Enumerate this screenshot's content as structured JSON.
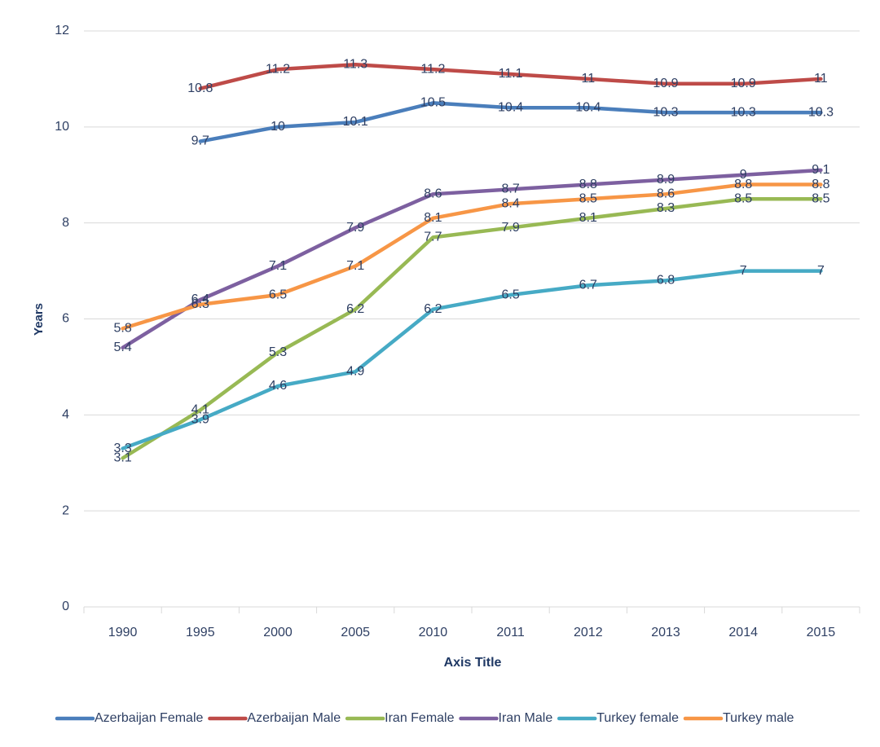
{
  "chart_data": {
    "type": "line",
    "categories": [
      "1990",
      "1995",
      "2000",
      "2005",
      "2010",
      "2011",
      "2012",
      "2013",
      "2014",
      "2015"
    ],
    "series": [
      {
        "name": "Azerbaijan Female",
        "color": "#4a7ebb",
        "values": [
          null,
          9.7,
          10,
          10.1,
          10.5,
          10.4,
          10.4,
          10.3,
          10.3,
          10.3
        ]
      },
      {
        "name": "Azerbaijan Male",
        "color": "#be4b48",
        "values": [
          null,
          10.8,
          11.2,
          11.3,
          11.2,
          11.1,
          11,
          10.9,
          10.9,
          11
        ]
      },
      {
        "name": "Iran Female",
        "color": "#98b954",
        "values": [
          3.1,
          4.1,
          5.3,
          6.2,
          7.7,
          7.9,
          8.1,
          8.3,
          8.5,
          8.5
        ]
      },
      {
        "name": "Iran Male",
        "color": "#7d60a0",
        "values": [
          5.4,
          6.4,
          7.1,
          7.9,
          8.6,
          8.7,
          8.8,
          8.9,
          9,
          9.1
        ]
      },
      {
        "name": "Turkey female",
        "color": "#46aac5",
        "values": [
          3.3,
          3.9,
          4.6,
          4.9,
          6.2,
          6.5,
          6.7,
          6.8,
          7,
          7
        ]
      },
      {
        "name": "Turkey male",
        "color": "#f79646",
        "values": [
          5.8,
          6.3,
          6.5,
          7.1,
          8.1,
          8.4,
          8.5,
          8.6,
          8.8,
          8.8
        ]
      }
    ],
    "ylim": [
      0,
      12
    ],
    "yticks": [
      0,
      2,
      4,
      6,
      8,
      10,
      12
    ],
    "grid": true,
    "ylabel": "Years",
    "xlabel": "Axis Title",
    "legend": "bottom"
  }
}
